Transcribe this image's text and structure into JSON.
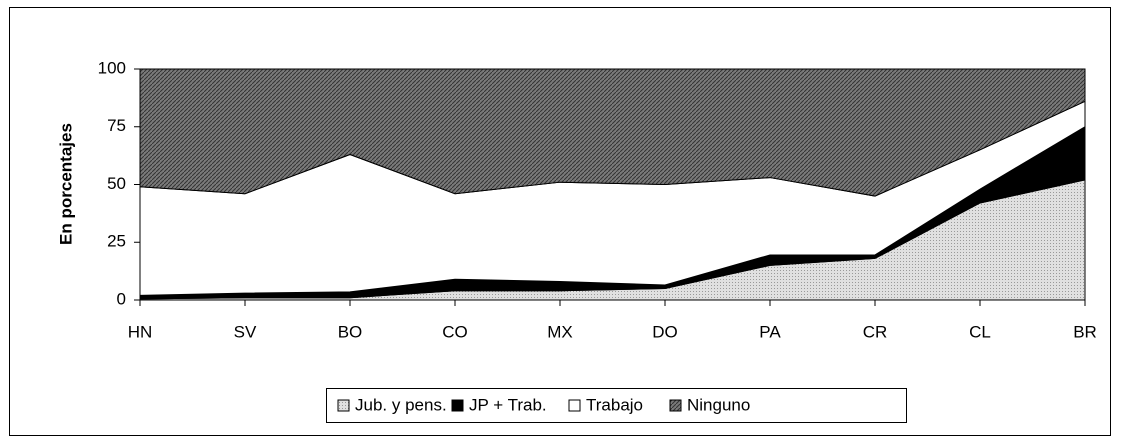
{
  "chart_data": {
    "type": "stacked_area",
    "y_label": "En porcentajes",
    "categories": [
      "HN",
      "SV",
      "BO",
      "CO",
      "MX",
      "DO",
      "PA",
      "CR",
      "CL",
      "BR"
    ],
    "series": [
      {
        "name": "Jub. y pens.",
        "color": "#c8c8c8",
        "values": [
          0.5,
          1,
          1,
          4,
          4,
          5,
          15,
          18,
          42,
          52
        ]
      },
      {
        "name": "JP + Trab.",
        "color": "#000000",
        "values": [
          1.5,
          2,
          2.5,
          5,
          4,
          1.5,
          4.5,
          1.5,
          6,
          23
        ]
      },
      {
        "name": "Trabajo",
        "color": "#ffffff",
        "values": [
          47,
          43,
          59.5,
          37,
          43,
          43.5,
          33.5,
          25.5,
          17,
          11
        ]
      },
      {
        "name": "Ninguno",
        "color": "#7a7a7a",
        "values": [
          51,
          54,
          37,
          54,
          49,
          50,
          47,
          55,
          35,
          14
        ]
      }
    ],
    "ylim": [
      0,
      100
    ],
    "yticks": [
      0,
      25,
      50,
      75,
      100
    ],
    "grid": false,
    "legend": "bottom"
  }
}
